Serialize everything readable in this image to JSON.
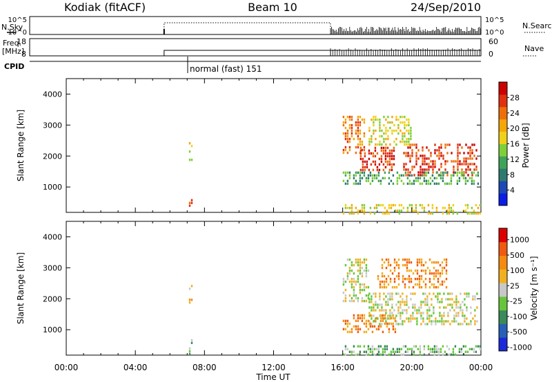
{
  "header": {
    "station": "Kodiak (fitACF)",
    "beam": "Beam 10",
    "date": "24/Sep/2010"
  },
  "status_panels": {
    "nsky_label": "N.Sky",
    "nsky_ticks": [
      "10^5",
      "10^0"
    ],
    "nsearch_label": "N.Search",
    "nsearch_ticks": [
      "10^5",
      "10^0"
    ],
    "freq_label": "Freq.",
    "freq_unit": "[MHz]",
    "freq_ticks": [
      "18",
      "8"
    ],
    "nave_label": "Nave",
    "nave_ticks": [
      "60",
      "0"
    ],
    "cpid_label": "CPID",
    "cpid_text": "normal (fast) 151"
  },
  "chart_data": [
    {
      "type": "heatmap",
      "name": "power",
      "ylabel": "Slant Range [km]",
      "xlabel": "",
      "ylim": [
        180,
        4500
      ],
      "yticks": [
        "1000",
        "2000",
        "3000",
        "4000"
      ],
      "xlim_hours": [
        0,
        24
      ],
      "colorbar": {
        "label": "Power [dB]",
        "ticks": [
          "4",
          "8",
          "12",
          "16",
          "20",
          "24",
          "28"
        ],
        "colors": [
          "#0a1ee6",
          "#1e48b4",
          "#2f7a6e",
          "#3fa35a",
          "#7fcf3a",
          "#f0d01a",
          "#f5a60a",
          "#ef6e0a",
          "#e03010",
          "#cc0000"
        ]
      },
      "regions": [
        {
          "t0": 7.1,
          "t1": 7.25,
          "r0": 1900,
          "r1": 2450,
          "level": 5
        },
        {
          "t0": 7.1,
          "t1": 7.25,
          "r0": 350,
          "r1": 700,
          "level": 8
        },
        {
          "t0": 16.0,
          "t1": 24.0,
          "r0": 180,
          "r1": 450,
          "level": 5
        },
        {
          "t0": 16.0,
          "t1": 17.2,
          "r0": 2100,
          "r1": 3300,
          "level": 7
        },
        {
          "t0": 17.0,
          "t1": 19.0,
          "r0": 1500,
          "r1": 2300,
          "level": 8
        },
        {
          "t0": 19.5,
          "t1": 23.8,
          "r0": 1400,
          "r1": 2400,
          "level": 8
        },
        {
          "t0": 16.0,
          "t1": 23.8,
          "r0": 1100,
          "r1": 1500,
          "level": 3
        },
        {
          "t0": 17.5,
          "t1": 20.0,
          "r0": 2400,
          "r1": 3300,
          "level": 5
        }
      ]
    },
    {
      "type": "heatmap",
      "name": "velocity",
      "ylabel": "Slant Range [km]",
      "xlabel": "Time UT",
      "ylim": [
        180,
        4500
      ],
      "yticks": [
        "1000",
        "2000",
        "3000",
        "4000"
      ],
      "xticks": [
        "00:00",
        "04:00",
        "08:00",
        "12:00",
        "16:00",
        "20:00",
        "00:00"
      ],
      "xlim_hours": [
        0,
        24
      ],
      "colorbar": {
        "label": "Velocity [m s⁻¹]",
        "ticks": [
          "1000",
          "500",
          "100",
          "25",
          "-25",
          "-100",
          "-500",
          "-1000"
        ],
        "colors": [
          "#1a2ad8",
          "#2860b8",
          "#3a8a5a",
          "#66c63a",
          "#c8c8c8",
          "#f0b020",
          "#f58a10",
          "#ef5a10",
          "#dd0000"
        ]
      },
      "regions": [
        {
          "t0": 7.1,
          "t1": 7.25,
          "r0": 1900,
          "r1": 2450,
          "level": 5
        },
        {
          "t0": 7.1,
          "t1": 7.25,
          "r0": 250,
          "r1": 700,
          "level": 3
        },
        {
          "t0": 16.0,
          "t1": 24.0,
          "r0": 180,
          "r1": 500,
          "level": 3
        },
        {
          "t0": 16.0,
          "t1": 17.5,
          "r0": 1900,
          "r1": 3300,
          "level": 4
        },
        {
          "t0": 17.5,
          "t1": 23.8,
          "r0": 1200,
          "r1": 2200,
          "level": 4
        },
        {
          "t0": 16.0,
          "t1": 19.0,
          "r0": 900,
          "r1": 1500,
          "level": 6
        },
        {
          "t0": 18.0,
          "t1": 22.0,
          "r0": 2400,
          "r1": 3300,
          "level": 6
        }
      ]
    }
  ]
}
